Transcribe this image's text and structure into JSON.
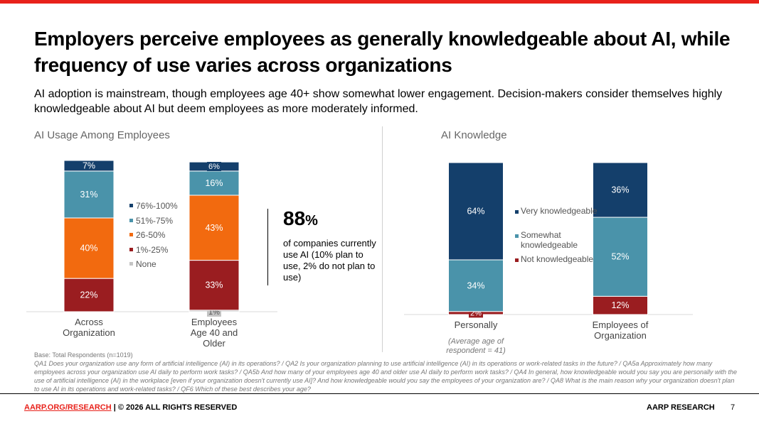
{
  "title": "Employers perceive employees as generally knowledgeable about AI, while frequency of use varies across organizations",
  "subtitle": "AI adoption is mainstream, though employees age 40+ show somewhat lower engagement. Decision-makers consider themselves highly knowledgeable about AI but deem employees as more moderately informed.",
  "callout": {
    "value": "88",
    "unit": "%",
    "text": "of companies currently use AI (10% plan to use, 2% do not plan to use)"
  },
  "footnote": {
    "base": "Base: Total Respondents (n=1019)",
    "questions": "QA1 Does your organization use any form of artificial intelligence (AI) in its operations? / QA2 Is your organization planning to use artificial intelligence (AI) in its operations or work-related tasks in the future? / QA5a Approximately how many employees across your organization use AI daily to perform work tasks? / QA5b And how many of your employees age 40 and older use AI daily to perform work tasks? / QA4 In general, how knowledgeable would you say you are personally with the use of artificial intelligence (AI) in the workplace [even if your organization doesn't currently use AI]? And how knowledgeable would you say the employees of your organization are? / QA8 What is the main reason why your organization doesn't plan to use AI in its operations and work-related tasks? / QF6 Which of these best describes your age?"
  },
  "footer": {
    "link": "AARP.ORG/RESEARCH",
    "rights": " | © 2026 ALL RIGHTS RESERVED",
    "brand": "AARP RESEARCH",
    "page": "7"
  },
  "colors": {
    "accent": "#e8221b",
    "dark_blue": "#143f6b",
    "teal": "#4a93aa",
    "orange": "#f26a0f",
    "dark_red": "#9a1d20",
    "gray": "#c4c4c4"
  },
  "chart_data": [
    {
      "type": "bar",
      "stacked": true,
      "title": "AI Usage Among Employees",
      "categories": [
        "Across Organization",
        "Employees Age 40 and Older"
      ],
      "series": [
        {
          "name": "None",
          "values": [
            0,
            1
          ],
          "color": "#c4c4c4"
        },
        {
          "name": "1%-25%",
          "values": [
            22,
            33
          ],
          "color": "#9a1d20"
        },
        {
          "name": "26-50%",
          "values": [
            40,
            43
          ],
          "color": "#f26a0f"
        },
        {
          "name": "51%-75%",
          "values": [
            31,
            16
          ],
          "color": "#4a93aa"
        },
        {
          "name": "76%-100%",
          "values": [
            7,
            6
          ],
          "color": "#143f6b"
        }
      ],
      "legend_order": [
        "76%-100%",
        "51%-75%",
        "26-50%",
        "1%-25%",
        "None"
      ],
      "legend": "right",
      "ylim": [
        0,
        100
      ],
      "grid": false
    },
    {
      "type": "bar",
      "stacked": true,
      "title": "AI Knowledge",
      "categories": [
        "Personally",
        "Employees of Organization"
      ],
      "category_notes": [
        "(Average age of respondent = 41)",
        ""
      ],
      "series": [
        {
          "name": "Not knowledgeable",
          "values": [
            2,
            12
          ],
          "color": "#9a1d20"
        },
        {
          "name": "Somewhat knowledgeable",
          "values": [
            34,
            52
          ],
          "color": "#4a93aa"
        },
        {
          "name": "Very knowledgeable",
          "values": [
            64,
            36
          ],
          "color": "#143f6b"
        }
      ],
      "legend_order": [
        "Very knowledgeable",
        "Somewhat knowledgeable",
        "Not knowledgeable"
      ],
      "legend": "right",
      "ylim": [
        0,
        100
      ],
      "grid": false
    }
  ]
}
